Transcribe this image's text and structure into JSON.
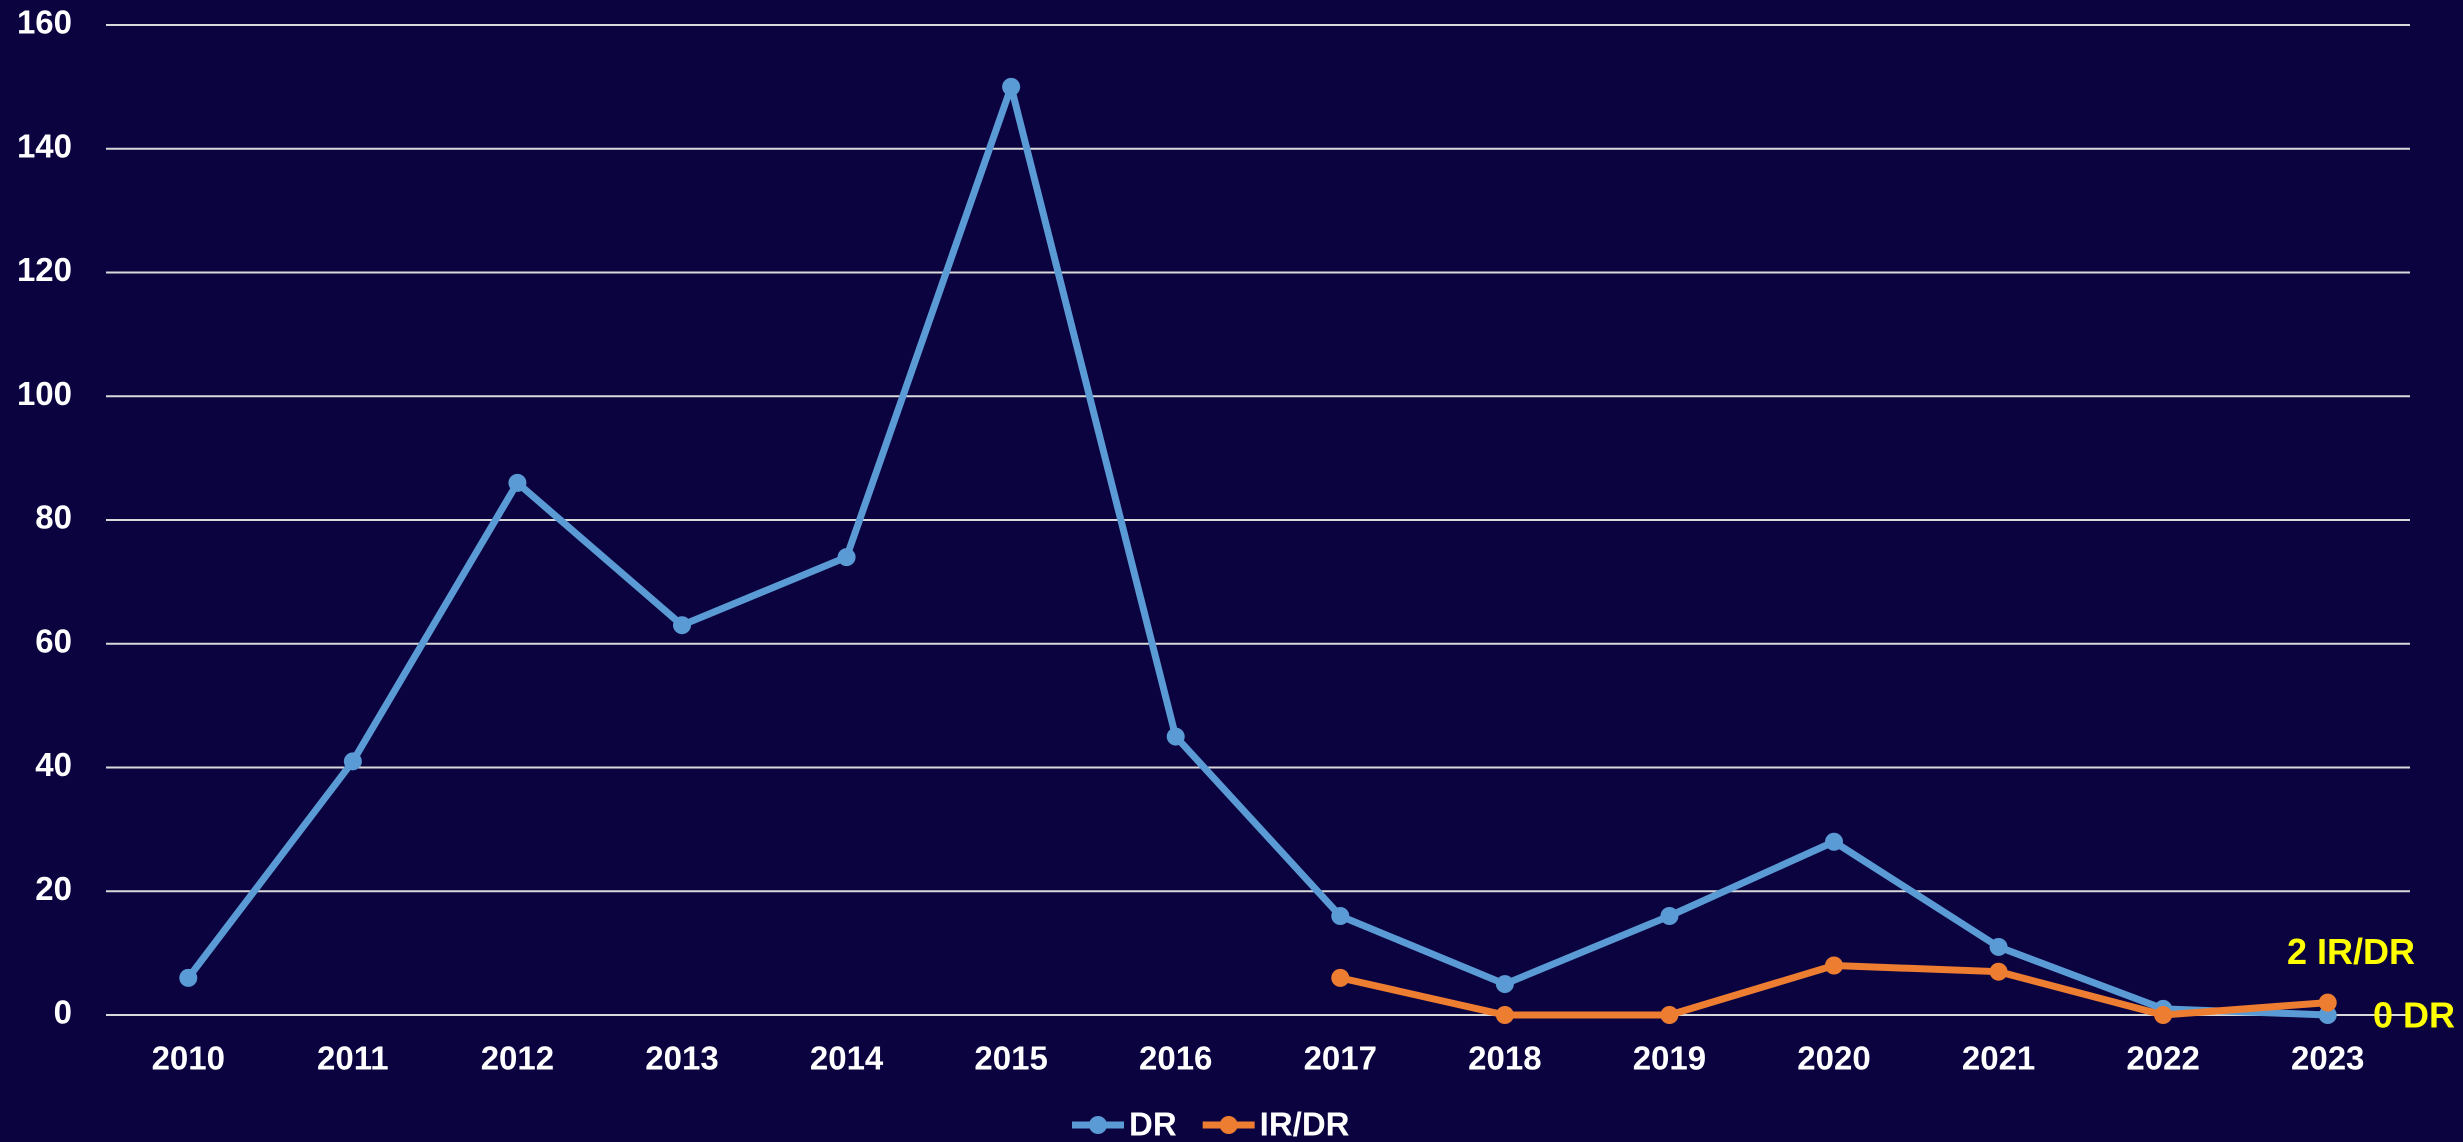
{
  "chart_data": {
    "type": "line",
    "categories": [
      "2010",
      "2011",
      "2012",
      "2013",
      "2014",
      "2015",
      "2016",
      "2017",
      "2018",
      "2019",
      "2020",
      "2021",
      "2022",
      "2023"
    ],
    "series": [
      {
        "name": "DR",
        "color": "#5b9bd5",
        "values": [
          6,
          41,
          86,
          63,
          74,
          150,
          45,
          16,
          5,
          16,
          28,
          11,
          1,
          0
        ]
      },
      {
        "name": "IR/DR",
        "color": "#ed7d31",
        "values": [
          null,
          null,
          null,
          null,
          null,
          null,
          null,
          6,
          0,
          0,
          8,
          7,
          0,
          2
        ]
      }
    ],
    "annotations": [
      "2 IR/DR",
      "0 DR"
    ],
    "annotation_color": "#ffff00",
    "ylim": [
      0,
      160
    ],
    "yticks": [
      0,
      20,
      40,
      60,
      80,
      100,
      120,
      140,
      160
    ],
    "grid": true,
    "legend": "bottom"
  }
}
